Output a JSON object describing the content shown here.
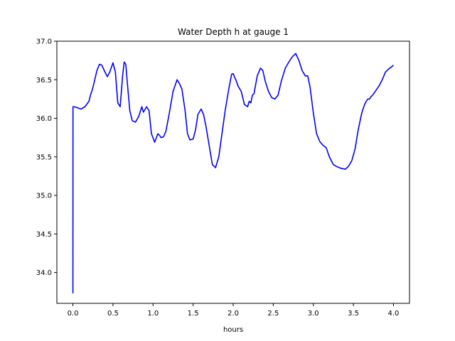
{
  "chart_data": {
    "type": "line",
    "title": "Water Depth h at gauge 1",
    "xlabel": "hours",
    "ylabel": "",
    "xlim": [
      -0.2,
      4.2
    ],
    "ylim": [
      33.6,
      37.0
    ],
    "xticks": [
      0.0,
      0.5,
      1.0,
      1.5,
      2.0,
      2.5,
      3.0,
      3.5,
      4.0
    ],
    "xtick_labels": [
      "0.0",
      "0.5",
      "1.0",
      "1.5",
      "2.0",
      "2.5",
      "3.0",
      "3.5",
      "4.0"
    ],
    "yticks": [
      34.0,
      34.5,
      35.0,
      35.5,
      36.0,
      36.5,
      37.0
    ],
    "ytick_labels": [
      "34.0",
      "34.5",
      "35.0",
      "35.5",
      "36.0",
      "36.5",
      "37.0"
    ],
    "grid": false,
    "line_color": "#0000ff",
    "series": [
      {
        "x": [
          0.0,
          0.001,
          0.01,
          0.05,
          0.1,
          0.15,
          0.2,
          0.22,
          0.25,
          0.3,
          0.33,
          0.36,
          0.4,
          0.43,
          0.46,
          0.5,
          0.53,
          0.56,
          0.59,
          0.62,
          0.64,
          0.66,
          0.68,
          0.71,
          0.74,
          0.78,
          0.82,
          0.86,
          0.88,
          0.92,
          0.95,
          0.98,
          1.02,
          1.06,
          1.08,
          1.1,
          1.13,
          1.16,
          1.2,
          1.25,
          1.3,
          1.33,
          1.36,
          1.4,
          1.43,
          1.46,
          1.5,
          1.53,
          1.56,
          1.6,
          1.63,
          1.66,
          1.7,
          1.74,
          1.78,
          1.82,
          1.86,
          1.9,
          1.94,
          1.98,
          2.0,
          2.04,
          2.06,
          2.1,
          2.14,
          2.18,
          2.2,
          2.22,
          2.24,
          2.26,
          2.3,
          2.34,
          2.37,
          2.4,
          2.44,
          2.48,
          2.52,
          2.56,
          2.6,
          2.65,
          2.7,
          2.74,
          2.78,
          2.82,
          2.86,
          2.9,
          2.93,
          2.96,
          3.0,
          3.04,
          3.08,
          3.12,
          3.16,
          3.2,
          3.25,
          3.3,
          3.35,
          3.4,
          3.44,
          3.48,
          3.52,
          3.56,
          3.6,
          3.62,
          3.64,
          3.66,
          3.68,
          3.7,
          3.72,
          3.74,
          3.78,
          3.82,
          3.86,
          3.9,
          3.94,
          3.98,
          4.0
        ],
        "y": [
          33.73,
          36.15,
          36.15,
          36.14,
          36.12,
          36.15,
          36.22,
          36.3,
          36.4,
          36.62,
          36.7,
          36.69,
          36.6,
          36.54,
          36.6,
          36.72,
          36.6,
          36.2,
          36.15,
          36.55,
          36.73,
          36.7,
          36.45,
          36.1,
          35.97,
          35.95,
          36.02,
          36.15,
          36.08,
          36.15,
          36.1,
          35.8,
          35.69,
          35.8,
          35.78,
          35.75,
          35.76,
          35.83,
          36.05,
          36.35,
          36.5,
          36.45,
          36.38,
          36.1,
          35.8,
          35.72,
          35.73,
          35.85,
          36.05,
          36.12,
          36.05,
          35.9,
          35.65,
          35.4,
          35.36,
          35.5,
          35.8,
          36.1,
          36.35,
          36.57,
          36.58,
          36.48,
          36.42,
          36.35,
          36.18,
          36.15,
          36.22,
          36.2,
          36.3,
          36.32,
          36.55,
          36.65,
          36.62,
          36.48,
          36.35,
          36.27,
          36.25,
          36.3,
          36.48,
          36.65,
          36.74,
          36.8,
          36.84,
          36.75,
          36.62,
          36.55,
          36.55,
          36.4,
          36.07,
          35.8,
          35.7,
          35.65,
          35.62,
          35.5,
          35.4,
          35.37,
          35.35,
          35.34,
          35.38,
          35.45,
          35.6,
          35.85,
          36.05,
          36.12,
          36.18,
          36.22,
          36.25,
          36.25,
          36.28,
          36.3,
          36.36,
          36.42,
          36.5,
          36.6,
          36.64,
          36.67,
          36.69
        ]
      }
    ]
  }
}
